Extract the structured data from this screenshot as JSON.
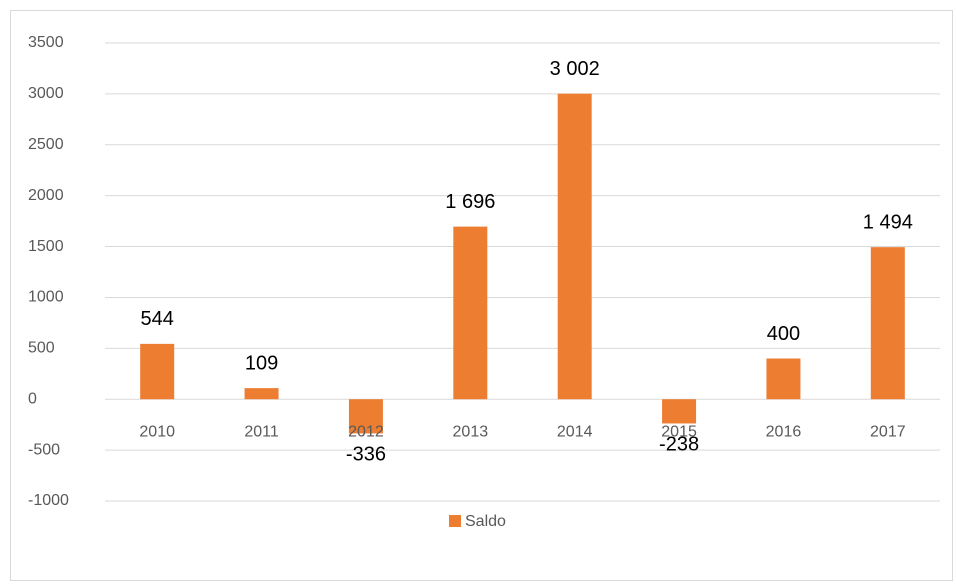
{
  "chart_data": {
    "type": "bar",
    "categories": [
      "2010",
      "2011",
      "2012",
      "2013",
      "2014",
      "2015",
      "2016",
      "2017"
    ],
    "series": [
      {
        "name": "Saldo",
        "color": "#ed7d31",
        "values": [
          544,
          109,
          -336,
          1696,
          3002,
          -238,
          400,
          1494
        ],
        "value_labels": [
          "544",
          "109",
          "-336",
          "1 696",
          "3 002",
          "-238",
          "400",
          "1 494"
        ]
      }
    ],
    "ylim": [
      -1000,
      3500
    ],
    "yticks": [
      -1000,
      -500,
      0,
      500,
      1000,
      1500,
      2000,
      2500,
      3000,
      3500
    ],
    "grid": true,
    "legend": "bottom"
  }
}
